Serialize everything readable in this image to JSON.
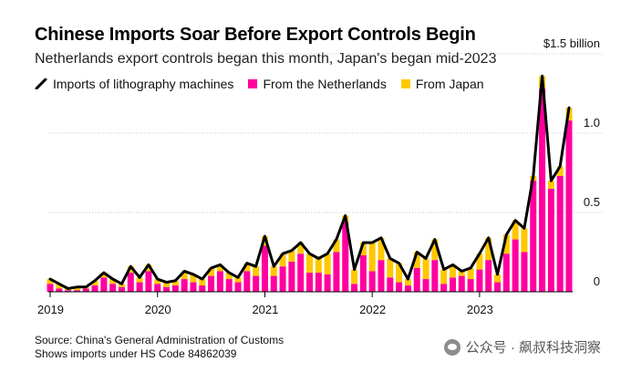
{
  "chart_data": {
    "type": "bar",
    "title": "Chinese Imports Soar Before Export Controls Begin",
    "subtitle": "Netherlands export controls began this month, Japan's began mid-2023",
    "legend": [
      {
        "name": "Imports of lithography machines",
        "kind": "line",
        "color": "#000000"
      },
      {
        "name": "From the Netherlands",
        "kind": "bar",
        "color": "#ff009e"
      },
      {
        "name": "From Japan",
        "kind": "bar",
        "color": "#ffc800"
      }
    ],
    "x_tick_labels": [
      "2019",
      "2020",
      "2021",
      "2022",
      "2023"
    ],
    "y_tick_labels": [
      {
        "value": 0,
        "label": "0"
      },
      {
        "value": 0.5,
        "label": "0.5"
      },
      {
        "value": 1.0,
        "label": "1.0"
      },
      {
        "value": 1.5,
        "label": "$1.5 billion"
      }
    ],
    "ylim": [
      0,
      1.5
    ],
    "units": "USD billion",
    "start": "2019-01",
    "series": [
      {
        "name": "From the Netherlands",
        "stack": true,
        "values": [
          0.05,
          0.02,
          0.01,
          0.01,
          0.02,
          0.04,
          0.09,
          0.05,
          0.03,
          0.12,
          0.06,
          0.13,
          0.05,
          0.03,
          0.04,
          0.08,
          0.06,
          0.04,
          0.1,
          0.13,
          0.08,
          0.06,
          0.13,
          0.1,
          0.29,
          0.1,
          0.16,
          0.19,
          0.24,
          0.12,
          0.12,
          0.11,
          0.25,
          0.44,
          0.05,
          0.23,
          0.13,
          0.2,
          0.09,
          0.06,
          0.04,
          0.15,
          0.08,
          0.2,
          0.05,
          0.09,
          0.1,
          0.08,
          0.14,
          0.2,
          0.06,
          0.24,
          0.33,
          0.25,
          0.7,
          1.28,
          0.65,
          0.73,
          1.08
        ]
      },
      {
        "name": "From Japan",
        "stack": true,
        "values": [
          0.03,
          0.03,
          0.01,
          0.02,
          0.01,
          0.03,
          0.03,
          0.03,
          0.02,
          0.04,
          0.03,
          0.04,
          0.03,
          0.03,
          0.03,
          0.05,
          0.05,
          0.04,
          0.05,
          0.04,
          0.04,
          0.03,
          0.05,
          0.06,
          0.06,
          0.06,
          0.08,
          0.07,
          0.07,
          0.12,
          0.09,
          0.13,
          0.08,
          0.04,
          0.09,
          0.08,
          0.18,
          0.14,
          0.12,
          0.12,
          0.04,
          0.1,
          0.13,
          0.13,
          0.09,
          0.08,
          0.03,
          0.07,
          0.1,
          0.14,
          0.05,
          0.12,
          0.12,
          0.15,
          0.03,
          0.08,
          0.05,
          0.06,
          0.08
        ]
      },
      {
        "name": "Imports of lithography machines",
        "line": true,
        "values": [
          0.08,
          0.05,
          0.02,
          0.03,
          0.03,
          0.07,
          0.12,
          0.08,
          0.05,
          0.16,
          0.09,
          0.17,
          0.08,
          0.06,
          0.07,
          0.13,
          0.11,
          0.08,
          0.15,
          0.17,
          0.12,
          0.09,
          0.18,
          0.16,
          0.35,
          0.16,
          0.24,
          0.26,
          0.31,
          0.24,
          0.21,
          0.24,
          0.33,
          0.48,
          0.14,
          0.31,
          0.31,
          0.34,
          0.21,
          0.18,
          0.08,
          0.25,
          0.21,
          0.33,
          0.14,
          0.17,
          0.13,
          0.15,
          0.24,
          0.34,
          0.11,
          0.36,
          0.45,
          0.4,
          0.73,
          1.36,
          0.7,
          0.79,
          1.16
        ]
      }
    ],
    "notes": [
      "Source: China's General Administration of Customs",
      "Shows imports under HS Code 84862039"
    ]
  },
  "watermark": {
    "text": "公众号 · 飙叔科技洞察",
    "icon": "wechat-icon"
  }
}
